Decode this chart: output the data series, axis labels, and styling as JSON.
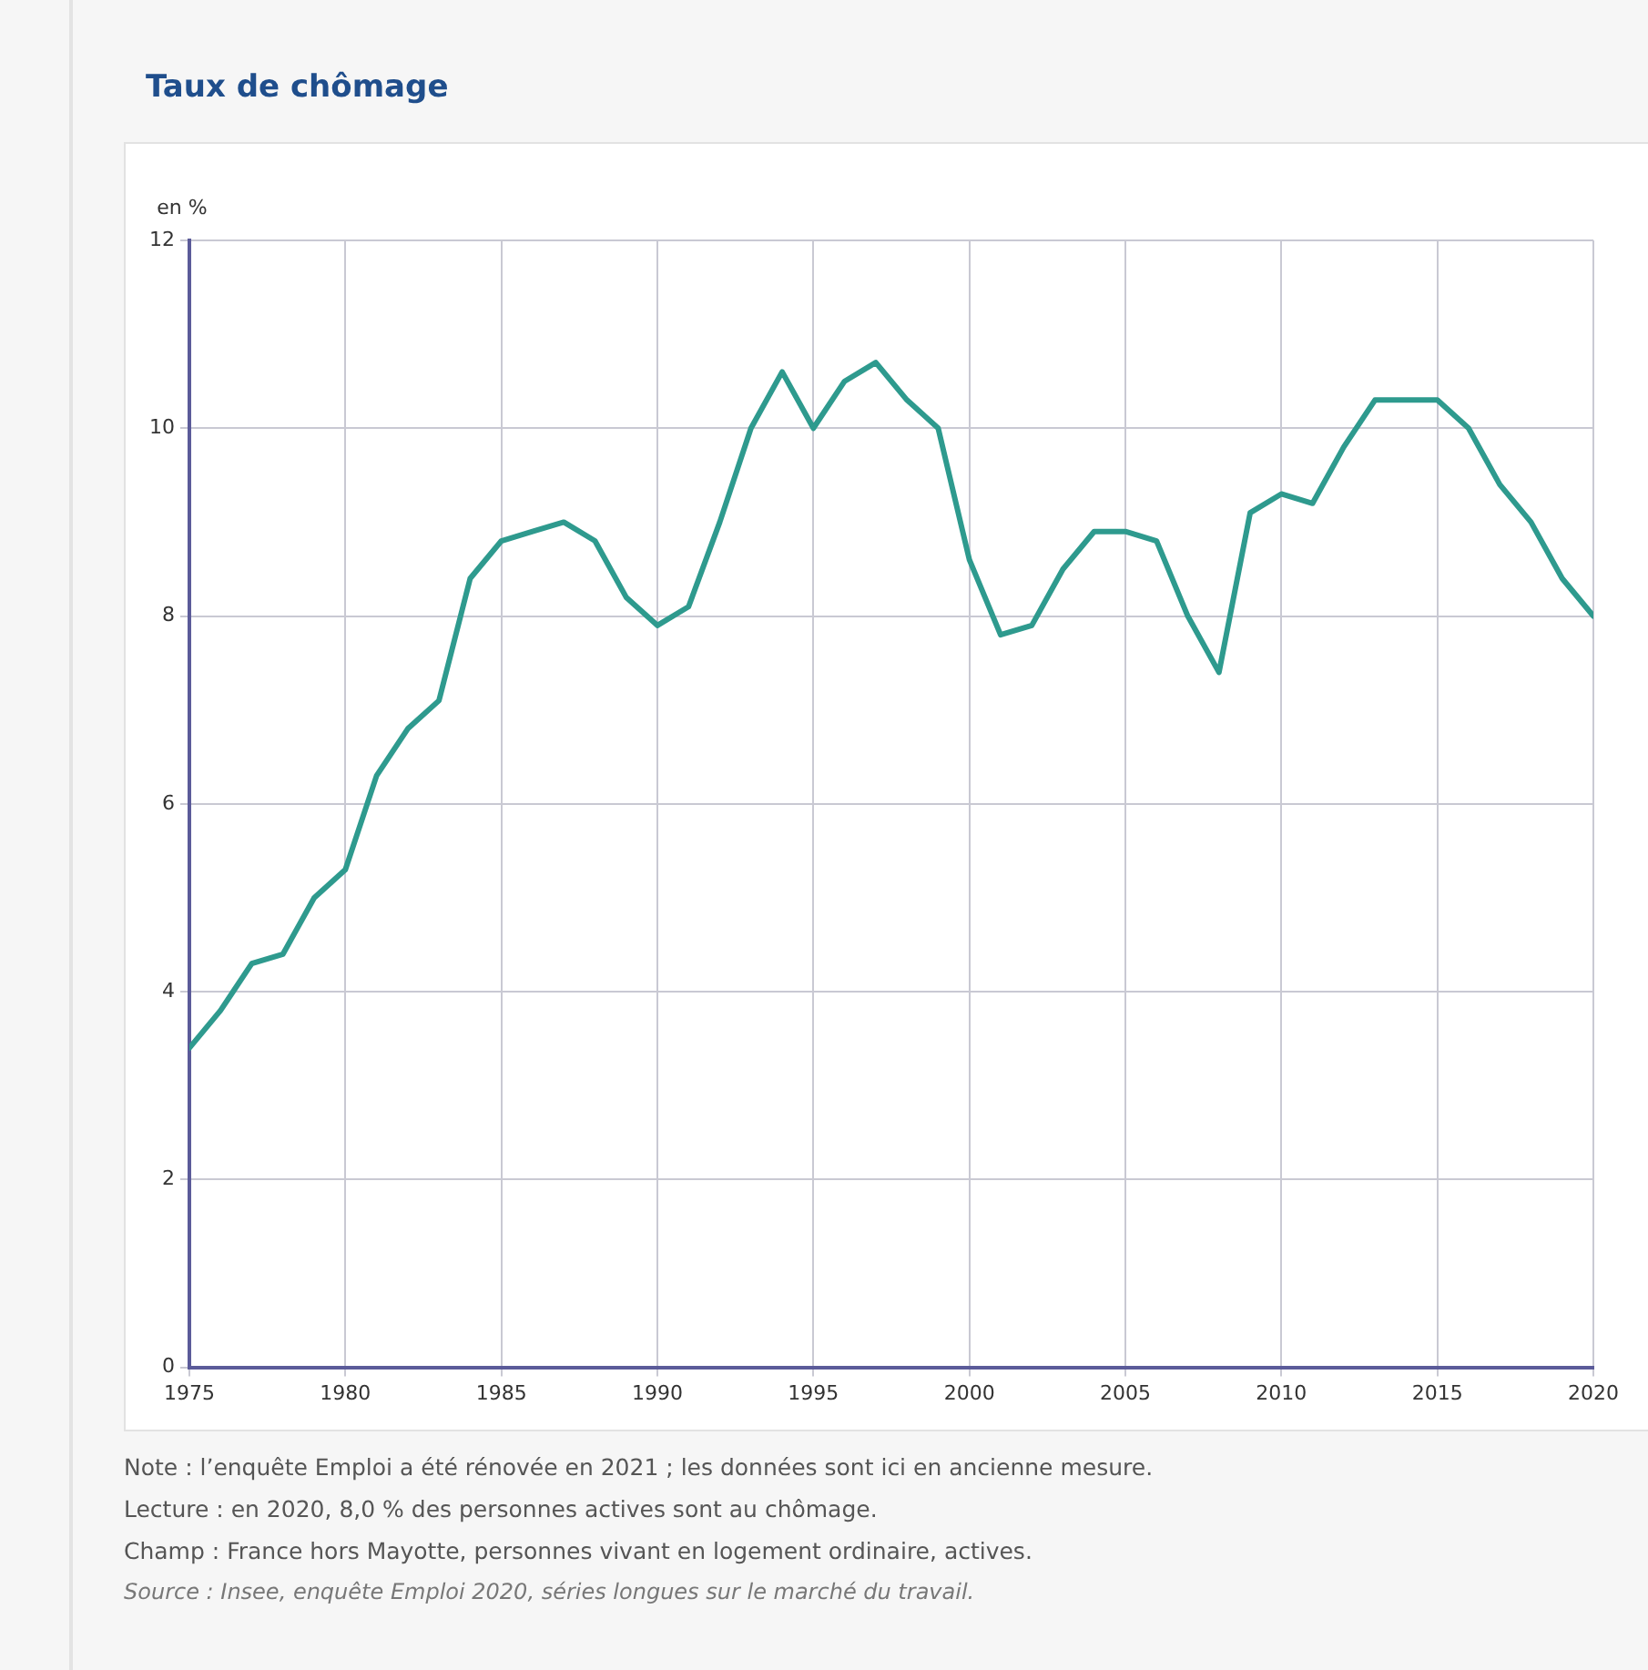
{
  "chart_data": {
    "type": "line",
    "title": "Taux de chômage",
    "ylabel": "en %",
    "x": [
      1975,
      1976,
      1977,
      1978,
      1979,
      1980,
      1981,
      1982,
      1983,
      1984,
      1985,
      1986,
      1987,
      1988,
      1989,
      1990,
      1991,
      1992,
      1993,
      1994,
      1995,
      1996,
      1997,
      1998,
      1999,
      2000,
      2001,
      2002,
      2003,
      2004,
      2005,
      2006,
      2007,
      2008,
      2009,
      2010,
      2011,
      2012,
      2013,
      2014,
      2015,
      2016,
      2017,
      2018,
      2019,
      2020
    ],
    "series": [
      {
        "color": "#2e9a8e",
        "values": [
          3.4,
          3.8,
          4.3,
          4.4,
          5.0,
          5.3,
          6.3,
          6.8,
          7.1,
          8.4,
          8.8,
          8.9,
          9.0,
          8.8,
          8.2,
          7.9,
          8.1,
          9.0,
          10.0,
          10.6,
          10.0,
          10.5,
          10.7,
          10.3,
          10.0,
          8.6,
          7.8,
          7.9,
          8.5,
          8.9,
          8.9,
          8.8,
          8.0,
          7.4,
          9.1,
          9.3,
          9.2,
          9.8,
          10.3,
          10.3,
          10.3,
          10.0,
          9.4,
          9.0,
          8.4,
          8.0
        ]
      }
    ],
    "xlim": [
      1975,
      2020
    ],
    "xticks": [
      1975,
      1980,
      1985,
      1990,
      1995,
      2000,
      2005,
      2010,
      2015,
      2020
    ],
    "ylim": [
      0,
      12
    ],
    "yticks": [
      0,
      2,
      4,
      6,
      8,
      10,
      12
    ],
    "grid": true,
    "legend": false,
    "marker": "none",
    "line_style": "solid",
    "annotations": [
      "Note : l’enquête Emploi a été rénovée en 2021 ; les données sont ici en ancienne mesure.",
      "Lecture : en 2020, 8,0 % des personnes actives sont au chômage.",
      "Champ : France hors Mayotte, personnes vivant en logement ordinaire, actives.",
      "Source : Insee, enquête Emploi 2020, séries longues sur le marché du travail."
    ]
  }
}
